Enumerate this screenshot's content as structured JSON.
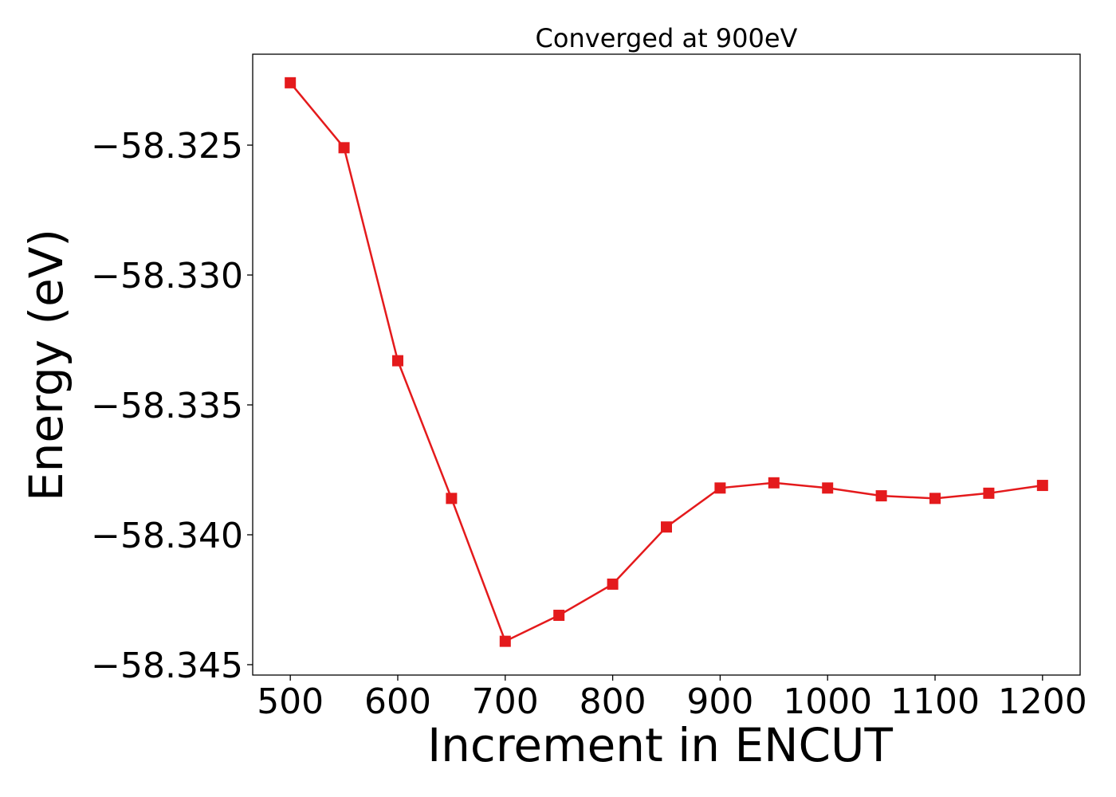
{
  "chart_data": {
    "type": "line",
    "title": "Converged at 900eV",
    "xlabel": "Increment in ENCUT",
    "ylabel": "Energy (eV)",
    "xlim": [
      465,
      1235
    ],
    "ylim": [
      -58.3454,
      -58.3215
    ],
    "xticks": [
      500,
      600,
      700,
      800,
      900,
      1000,
      1100,
      1200
    ],
    "xtick_labels": [
      "500",
      "600",
      "700",
      "800",
      "900",
      "1000",
      "1100",
      "1200"
    ],
    "yticks": [
      -58.325,
      -58.33,
      -58.335,
      -58.34,
      -58.345
    ],
    "ytick_labels": [
      "−58.325",
      "−58.330",
      "−58.335",
      "−58.340",
      "−58.345"
    ],
    "grid": false,
    "series": [
      {
        "color": "#e41a1c",
        "marker": "square",
        "x": [
          500,
          550,
          600,
          650,
          700,
          750,
          800,
          850,
          900,
          950,
          1000,
          1050,
          1100,
          1150,
          1200
        ],
        "y": [
          -58.3226,
          -58.3251,
          -58.3333,
          -58.3386,
          -58.3441,
          -58.3431,
          -58.3419,
          -58.3397,
          -58.3382,
          -58.338,
          -58.3382,
          -58.3385,
          -58.3386,
          -58.3384,
          -58.3381
        ]
      }
    ]
  }
}
